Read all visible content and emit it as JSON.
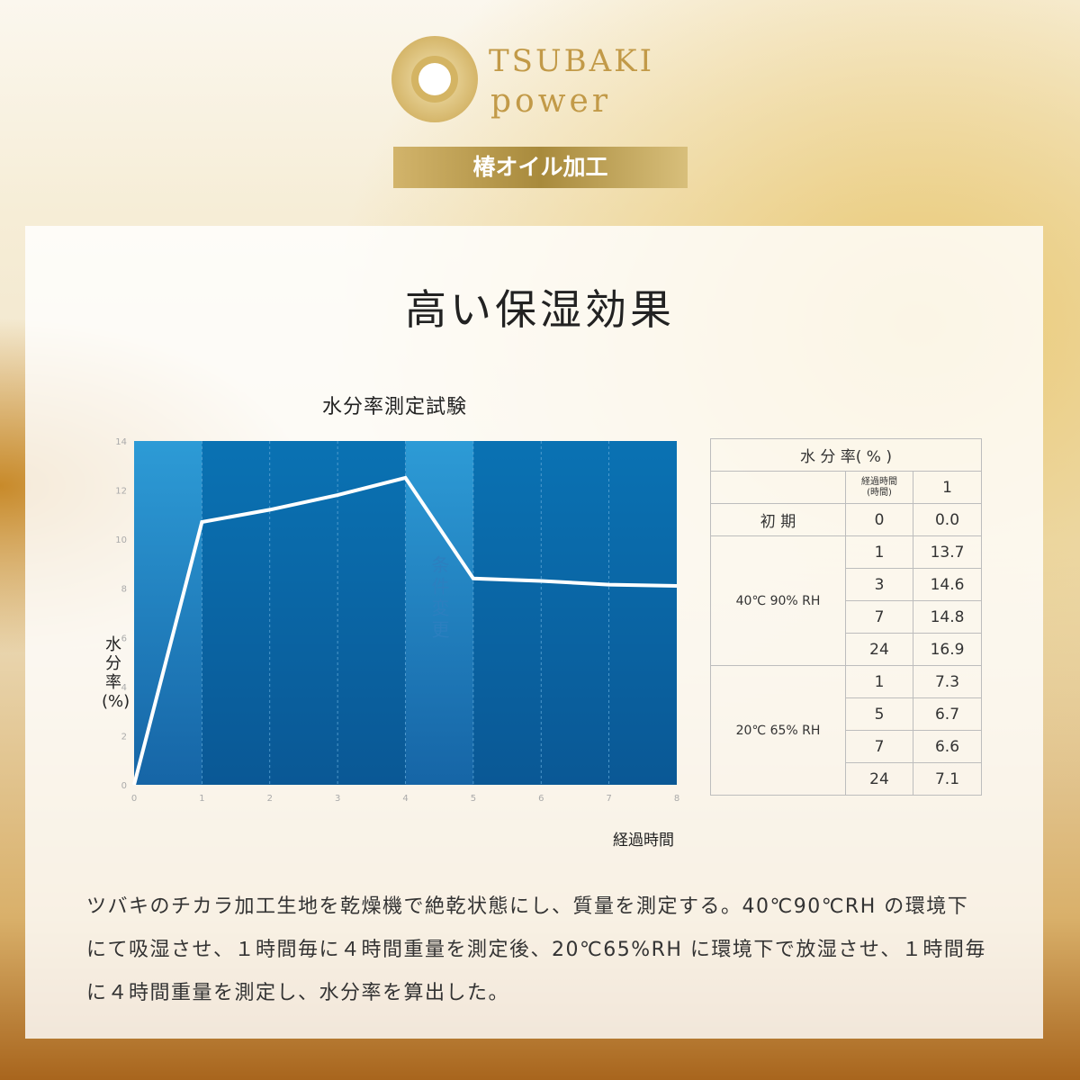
{
  "brand": {
    "name_line1": "TSUBAKI",
    "name_line2": "power",
    "badge": "椿オイル加工"
  },
  "heading": "高い保湿効果",
  "chart_data": {
    "type": "line",
    "title": "水分率測定試験",
    "xlabel": "経過時間",
    "ylabel": "水分率(%)",
    "xlim": [
      0,
      8
    ],
    "ylim": [
      0,
      14
    ],
    "xticks": [
      "0",
      "1",
      "2",
      "3",
      "4",
      "5",
      "6",
      "7",
      "8"
    ],
    "yticks": [
      "0",
      "2",
      "4",
      "6",
      "8",
      "10",
      "12",
      "14"
    ],
    "annotation": "条件変更",
    "highlight_bands": [
      [
        0,
        1
      ],
      [
        4,
        5
      ]
    ],
    "grid": "vertical dashed",
    "colors": {
      "line": "#ffffff",
      "band_dark": "#0a5c9a",
      "band_light": "#2a93cf"
    },
    "x": [
      0,
      1,
      2,
      3,
      4,
      5,
      6,
      7,
      8
    ],
    "values": [
      0,
      10.7,
      11.2,
      11.8,
      12.5,
      8.4,
      8.3,
      8.15,
      8.1
    ]
  },
  "table": {
    "header": "水 分 率( % )",
    "col_time": "経過時間\n(時間)",
    "col_value": "1",
    "groups": [
      {
        "label": "初 期",
        "rows": [
          [
            "0",
            "0.0"
          ]
        ]
      },
      {
        "label": "40℃ 90% RH",
        "rows": [
          [
            "1",
            "13.7"
          ],
          [
            "3",
            "14.6"
          ],
          [
            "7",
            "14.8"
          ],
          [
            "24",
            "16.9"
          ]
        ]
      },
      {
        "label": "20℃ 65% RH",
        "rows": [
          [
            "1",
            "7.3"
          ],
          [
            "5",
            "6.7"
          ],
          [
            "7",
            "6.6"
          ],
          [
            "24",
            "7.1"
          ]
        ]
      }
    ]
  },
  "description": "ツバキのチカラ加工生地を乾燥機で絶乾状態にし、質量を測定する。40℃90℃RH の環境下にて吸湿させ、１時間毎に４時間重量を測定後、20℃65%RH に環境下で放湿させ、１時間毎に４時間重量を測定し、水分率を算出した。"
}
